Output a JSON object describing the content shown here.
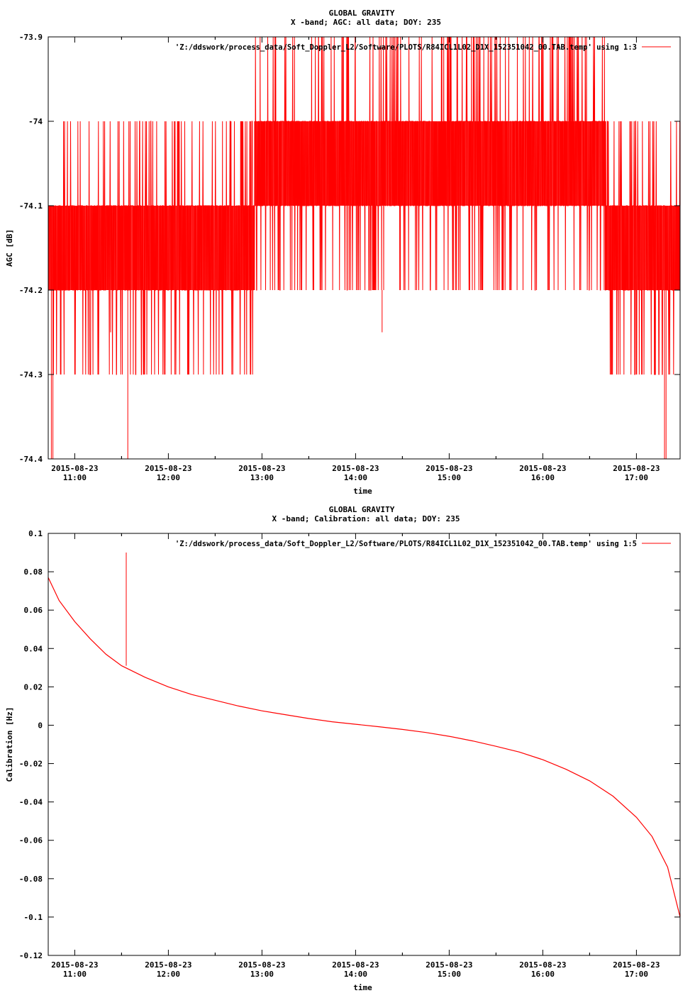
{
  "colors": {
    "series": "#ff0000",
    "axis": "#000000",
    "background": "#ffffff"
  },
  "chart_data": [
    {
      "type": "line",
      "title": "GLOBAL GRAVITY",
      "subtitle": "X -band; AGC: all data; DOY: 235",
      "xlabel": "time",
      "ylabel": "AGC [dB]",
      "ylim": [
        -74.4,
        -73.9
      ],
      "yticks": [
        -73.9,
        -74,
        -74.1,
        -74.2,
        -74.3,
        -74.4
      ],
      "ytick_labels": [
        "-73.9",
        "-74",
        "-74.1",
        "-74.2",
        "-74.3",
        "-74.4"
      ],
      "xlim": [
        "2015-08-23 10:43",
        "2015-08-23 17:28"
      ],
      "xtick_times": [
        "11:00",
        "12:00",
        "13:00",
        "14:00",
        "15:00",
        "16:00",
        "17:00"
      ],
      "xtick_date": "2015-08-23",
      "legend": {
        "label": "'Z:/ddswork/process_data/Soft_Doppler_L2/Software/PLOTS/R84ICL1L02_D1X_152351042_00.TAB.temp' using 1:3",
        "placement": "top-right"
      },
      "grid": false,
      "series": [
        {
          "description": "AGC samples quantized to 0.1 dB; mostly between -74.1 and -74.2 before 13:00 and after 16:40, mostly between -74.0 and -74.1 from 13:00 to 16:40, with occasional spikes to -73.9 and -74.3/-74.4",
          "dominant_band_by_period": [
            {
              "from": "10:43",
              "to": "12:55",
              "band": [
                -74.2,
                -74.1
              ],
              "frequent_excursions": [
                -74.0,
                -74.3
              ]
            },
            {
              "from": "12:55",
              "to": "16:40",
              "band": [
                -74.1,
                -74.0
              ],
              "frequent_excursions": [
                -74.2,
                -73.9
              ]
            },
            {
              "from": "16:40",
              "to": "17:28",
              "band": [
                -74.2,
                -74.1
              ],
              "frequent_excursions": [
                -74.0,
                -74.3
              ]
            }
          ],
          "isolated_spikes": [
            {
              "t": "10:45",
              "y": -74.4
            },
            {
              "t": "10:46",
              "y": -74.4
            },
            {
              "t": "11:34",
              "y": -74.4
            },
            {
              "t": "17:18",
              "y": -74.4
            },
            {
              "t": "17:19",
              "y": -74.4
            },
            {
              "t": "14:17",
              "y": -74.25
            },
            {
              "t": "11:15",
              "y": -74.25
            },
            {
              "t": "11:23",
              "y": -74.25
            }
          ]
        }
      ]
    },
    {
      "type": "line",
      "title": "GLOBAL GRAVITY",
      "subtitle": "X -band; Calibration: all data; DOY: 235",
      "xlabel": "time",
      "ylabel": "Calibration [Hz]",
      "ylim": [
        -0.12,
        0.1
      ],
      "yticks": [
        0.1,
        0.08,
        0.06,
        0.04,
        0.02,
        0,
        -0.02,
        -0.04,
        -0.06,
        -0.08,
        -0.1,
        -0.12
      ],
      "ytick_labels": [
        "0.1",
        "0.08",
        "0.06",
        "0.04",
        "0.02",
        "0",
        "-0.02",
        "-0.04",
        "-0.06",
        "-0.08",
        "-0.1",
        "-0.12"
      ],
      "xlim": [
        "2015-08-23 10:43",
        "2015-08-23 17:28"
      ],
      "xtick_times": [
        "11:00",
        "12:00",
        "13:00",
        "14:00",
        "15:00",
        "16:00",
        "17:00"
      ],
      "xtick_date": "2015-08-23",
      "legend": {
        "label": "'Z:/ddswork/process_data/Soft_Doppler_L2/Software/PLOTS/R84ICL1L02_D1X_152351042_00.TAB.temp' using 1:5",
        "placement": "top-right"
      },
      "grid": false,
      "series": [
        {
          "points": [
            [
              "10:43",
              0.077
            ],
            [
              "10:50",
              0.065
            ],
            [
              "11:00",
              0.054
            ],
            [
              "11:10",
              0.045
            ],
            [
              "11:20",
              0.037
            ],
            [
              "11:30",
              0.031
            ],
            [
              "11:45",
              0.025
            ],
            [
              "12:00",
              0.02
            ],
            [
              "12:15",
              0.016
            ],
            [
              "12:30",
              0.013
            ],
            [
              "12:45",
              0.01
            ],
            [
              "13:00",
              0.0075
            ],
            [
              "13:15",
              0.0055
            ],
            [
              "13:30",
              0.0035
            ],
            [
              "13:45",
              0.0018
            ],
            [
              "14:00",
              0.0005
            ],
            [
              "14:15",
              -0.0008
            ],
            [
              "14:30",
              -0.0022
            ],
            [
              "14:45",
              -0.0038
            ],
            [
              "15:00",
              -0.0058
            ],
            [
              "15:15",
              -0.0082
            ],
            [
              "15:30",
              -0.011
            ],
            [
              "15:45",
              -0.014
            ],
            [
              "16:00",
              -0.018
            ],
            [
              "16:15",
              -0.023
            ],
            [
              "16:30",
              -0.029
            ],
            [
              "16:45",
              -0.037
            ],
            [
              "17:00",
              -0.048
            ],
            [
              "17:10",
              -0.058
            ],
            [
              "17:20",
              -0.074
            ],
            [
              "17:28",
              -0.1
            ]
          ],
          "spike": {
            "t": "11:33",
            "y_min": 0.031,
            "y_max": 0.09
          }
        }
      ]
    }
  ]
}
